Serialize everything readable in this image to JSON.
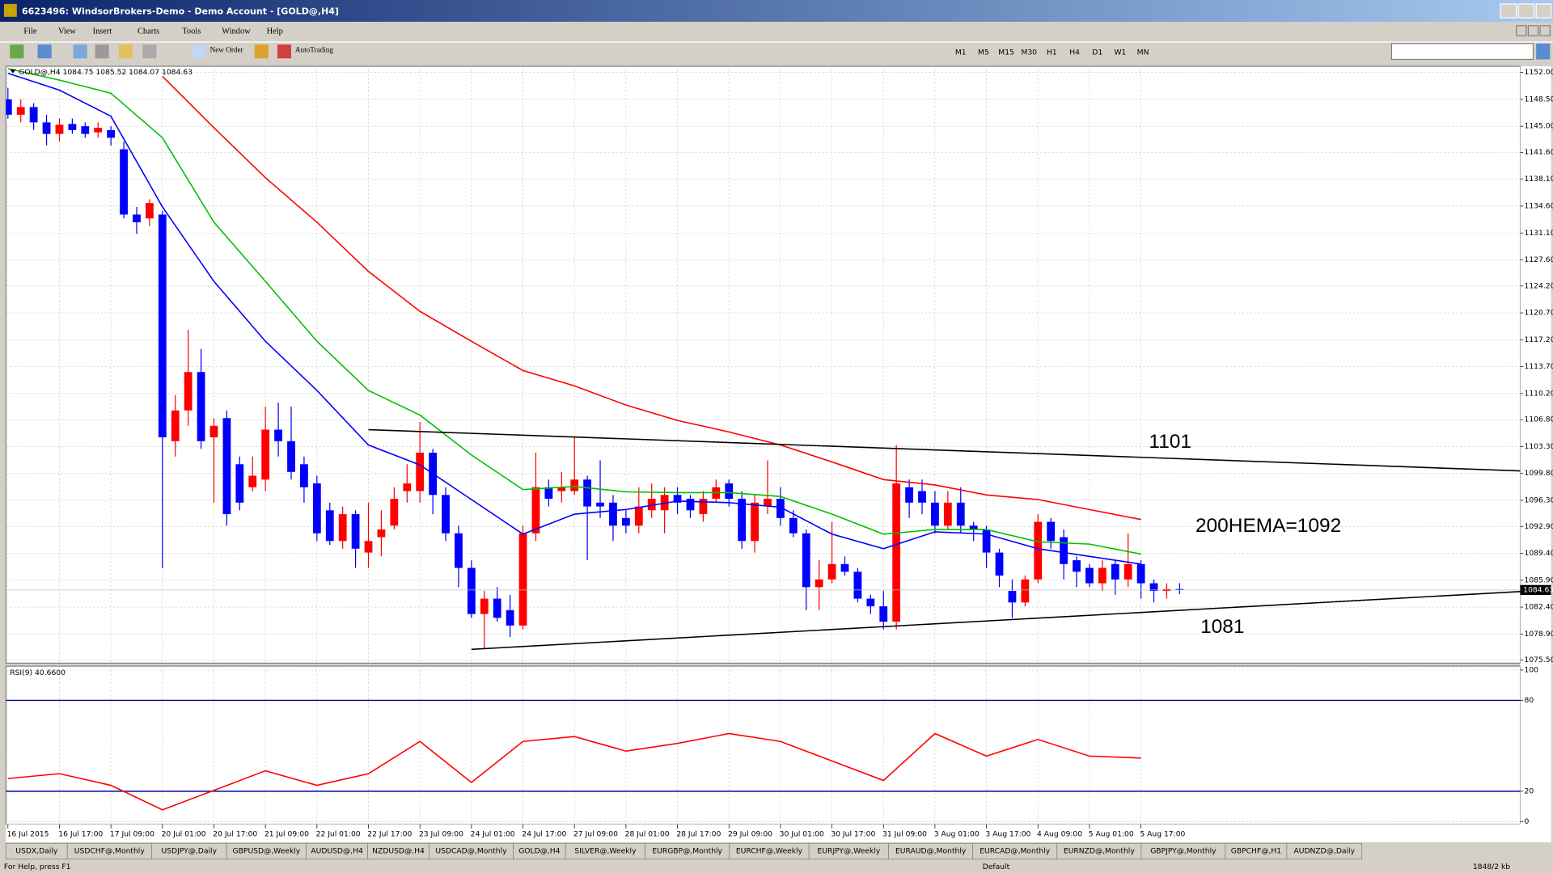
{
  "window": {
    "title": "6623496: WindsorBrokers-Demo - Demo Account - [GOLD@,H4]"
  },
  "menu": [
    "File",
    "View",
    "Insert",
    "Charts",
    "Tools",
    "Window",
    "Help"
  ],
  "toolbar": {
    "new_order": "New Order",
    "autotrading": "AutoTrading",
    "timeframes": [
      "M1",
      "M5",
      "M15",
      "M30",
      "H1",
      "H4",
      "D1",
      "W1",
      "MN"
    ]
  },
  "chart_data": [
    {
      "type": "candlestick",
      "header": "GOLD@,H4  1084.75 1085.52 1084.07 1084.63",
      "categories": [
        "16 Jul 2015",
        null,
        null,
        null,
        "16 Jul 17:00",
        null,
        null,
        null,
        "17 Jul 09:00",
        null,
        null,
        null,
        "20 Jul 01:00",
        null,
        null,
        null,
        "20 Jul 17:00",
        null,
        null,
        null,
        "21 Jul 09:00",
        null,
        null,
        null,
        "22 Jul 01:00",
        null,
        null,
        null,
        "22 Jul 17:00",
        null,
        null,
        null,
        "23 Jul 09:00",
        null,
        null,
        null,
        "24 Jul 01:00",
        null,
        null,
        null,
        "24 Jul 17:00",
        null,
        null,
        null,
        "27 Jul 09:00",
        null,
        null,
        null,
        "28 Jul 01:00",
        null,
        null,
        null,
        "28 Jul 17:00",
        null,
        null,
        null,
        "29 Jul 09:00",
        null,
        null,
        null,
        "30 Jul 01:00",
        null,
        null,
        null,
        "30 Jul 17:00",
        null,
        null,
        null,
        "31 Jul 09:00",
        null,
        null,
        null,
        "3 Aug 01:00",
        null,
        null,
        null,
        "3 Aug 17:00",
        null,
        null,
        null,
        "4 Aug 09:00",
        null,
        null,
        null,
        "5 Aug 01:00",
        null,
        null,
        null,
        "5 Aug 17:00",
        null,
        null,
        null
      ],
      "open": [
        1148.5,
        1146.5,
        1147.5,
        1145.5,
        1144.0,
        1145.3,
        1145.0,
        1144.2,
        1144.5,
        1142.0,
        1133.5,
        1133.0,
        1133.5,
        1104.0,
        1108.0,
        1113.0,
        1104.5,
        1107,
        1101,
        1098,
        1099,
        1105.5,
        1104,
        1101,
        1098.5,
        1095,
        1091,
        1094.5,
        1089.5,
        1091.5,
        1093,
        1097.5,
        1097.5,
        1102.5,
        1097,
        1092,
        1087.5,
        1081.5,
        1083.5,
        1082,
        1080,
        1092,
        1098,
        1097.5,
        1097.5,
        1099,
        1096,
        1096,
        1094,
        1093,
        1095,
        1095,
        1097,
        1096.5,
        1094.5,
        1096.5,
        1098.5,
        1096.5,
        1091,
        1095.5,
        1096.5,
        1094,
        1092,
        1085,
        1086,
        1088,
        1087,
        1083.5,
        1082.5,
        1080.5,
        1098,
        1097.5,
        1096,
        1093,
        1096,
        1093,
        1092.5,
        1089.5,
        1084.5,
        1083,
        1086,
        1093.5,
        1091.5,
        1088.5,
        1087.5,
        1085.5,
        1088,
        1086,
        1088,
        1085.5,
        1084.5,
        1084.75
      ],
      "high": [
        1150,
        1148.5,
        1148,
        1146.5,
        1146,
        1146,
        1145.5,
        1145.5,
        1145,
        1143,
        1134.5,
        1135.5,
        1134,
        1110,
        1118.5,
        1116,
        1107,
        1108,
        1102,
        1102,
        1108.5,
        1109,
        1108.5,
        1102,
        1099.5,
        1096,
        1095.5,
        1095,
        1096,
        1095,
        1098,
        1101,
        1106.5,
        1103,
        1098,
        1093,
        1088.5,
        1084.5,
        1085,
        1084,
        1093,
        1102.5,
        1099,
        1100,
        1104.5,
        1099.5,
        1101.5,
        1097,
        1095,
        1098,
        1098.5,
        1098,
        1098,
        1097,
        1097.5,
        1099,
        1099,
        1097.5,
        1097,
        1101.5,
        1098,
        1095,
        1092.5,
        1088.5,
        1093.5,
        1089,
        1087.5,
        1084,
        1084.5,
        1103.5,
        1099,
        1099,
        1097.5,
        1097.5,
        1098,
        1093.5,
        1093,
        1090,
        1086,
        1086.5,
        1094.5,
        1094,
        1092.5,
        1089,
        1088,
        1088.5,
        1088.5,
        1092,
        1088.5,
        1086,
        1085.5,
        1085.52
      ],
      "low": [
        1146,
        1145.5,
        1144.5,
        1142.5,
        1143,
        1144,
        1143.5,
        1143.5,
        1142.5,
        1133,
        1131,
        1132,
        1087.5,
        1102,
        1106,
        1103,
        1096,
        1093,
        1095,
        1097.5,
        1097.5,
        1102,
        1099,
        1096,
        1091,
        1090.5,
        1090,
        1087.5,
        1087.5,
        1089,
        1092.5,
        1096,
        1096,
        1094.5,
        1091,
        1085,
        1081,
        1077,
        1080.5,
        1078.5,
        1079.5,
        1091,
        1095.5,
        1096,
        1097,
        1088.5,
        1094,
        1091,
        1092,
        1092,
        1094,
        1092,
        1094.5,
        1094,
        1093.5,
        1096,
        1095.5,
        1090,
        1089.5,
        1094.5,
        1093,
        1091.5,
        1082,
        1082,
        1085.5,
        1086.5,
        1083,
        1081.5,
        1079.5,
        1079.5,
        1094,
        1094.5,
        1092,
        1092.5,
        1092,
        1091,
        1087.5,
        1085,
        1081,
        1082.5,
        1085.5,
        1090,
        1086,
        1085,
        1085,
        1084.5,
        1084,
        1085,
        1083.5,
        1083,
        1083.5,
        1084.07
      ],
      "close": [
        1146.5,
        1147.5,
        1145.5,
        1144.0,
        1145.2,
        1144.5,
        1144.0,
        1144.8,
        1143.5,
        1133.5,
        1132.5,
        1135.0,
        1104.5,
        1108.0,
        1113.0,
        1104.0,
        1106,
        1094.5,
        1096,
        1099.5,
        1105.5,
        1104,
        1100,
        1098,
        1092,
        1091,
        1094.5,
        1090,
        1091,
        1092.5,
        1096.5,
        1098.5,
        1102.5,
        1097,
        1092,
        1087.5,
        1081.5,
        1083.5,
        1081,
        1080,
        1092,
        1098,
        1096.5,
        1098,
        1099,
        1095.5,
        1095.5,
        1093,
        1093,
        1095.5,
        1096.5,
        1097,
        1096,
        1095,
        1096.5,
        1098,
        1096.5,
        1091,
        1096,
        1096.5,
        1094,
        1092,
        1085,
        1086,
        1088,
        1087,
        1083.5,
        1082.5,
        1080.5,
        1098.5,
        1096,
        1096,
        1093,
        1096,
        1093,
        1092.5,
        1089.5,
        1086.5,
        1083,
        1086,
        1093.5,
        1091,
        1088,
        1087,
        1085.5,
        1087.5,
        1086,
        1088,
        1085.5,
        1084.5,
        1084.75,
        1084.63
      ],
      "up_color": "#ff0000",
      "down_color": "#0000ff",
      "series": [
        {
          "color": "#0000ff",
          "x": [
            "16 Jul 2015",
            "16 Jul 17:00",
            "17 Jul 09:00",
            "20 Jul 01:00",
            "20 Jul 17:00",
            "21 Jul 09:00",
            "22 Jul 01:00",
            "22 Jul 17:00",
            "23 Jul 09:00",
            "24 Jul 01:00",
            "24 Jul 17:00",
            "27 Jul 09:00",
            "28 Jul 01:00",
            "28 Jul 17:00",
            "29 Jul 09:00",
            "30 Jul 01:00",
            "30 Jul 17:00",
            "31 Jul 09:00",
            "3 Aug 01:00",
            "3 Aug 17:00",
            "4 Aug 09:00",
            "5 Aug 01:00",
            "5 Aug 17:00"
          ],
          "values": [
            1151.9,
            1149.7,
            1146.3,
            1134.5,
            1124.8,
            1117,
            1110.6,
            1103.5,
            1100.9,
            1096.4,
            1091.9,
            1094.5,
            1095.1,
            1096.2,
            1096,
            1095.4,
            1091.9,
            1090,
            1092.2,
            1091.9,
            1090,
            1089,
            1088
          ]
        },
        {
          "color": "#00c000",
          "x": [
            "16 Jul 2015",
            "16 Jul 17:00",
            "17 Jul 09:00",
            "20 Jul 01:00",
            "20 Jul 17:00",
            "21 Jul 09:00",
            "22 Jul 01:00",
            "22 Jul 17:00",
            "23 Jul 09:00",
            "24 Jul 01:00",
            "24 Jul 17:00",
            "27 Jul 09:00",
            "28 Jul 01:00",
            "28 Jul 17:00",
            "29 Jul 09:00",
            "30 Jul 01:00",
            "30 Jul 17:00",
            "31 Jul 09:00",
            "3 Aug 01:00",
            "3 Aug 17:00",
            "4 Aug 09:00",
            "5 Aug 01:00",
            "5 Aug 17:00"
          ],
          "values": [
            1152.5,
            1151,
            1149.3,
            1143.5,
            1132.5,
            1124.8,
            1117,
            1110.6,
            1107.4,
            1102.2,
            1097.7,
            1098.1,
            1097.4,
            1097.3,
            1097.3,
            1096.8,
            1094.5,
            1091.9,
            1092.5,
            1092.5,
            1090.9,
            1090.6,
            1089.3
          ]
        },
        {
          "color": "#ff0000",
          "x": [
            "16 Jul 2015",
            "16 Jul 17:00",
            "17 Jul 09:00",
            "20 Jul 01:00",
            "20 Jul 17:00",
            "21 Jul 09:00",
            "22 Jul 01:00",
            "22 Jul 17:00",
            "23 Jul 09:00",
            "24 Jul 01:00",
            "24 Jul 17:00",
            "27 Jul 09:00",
            "28 Jul 01:00",
            "28 Jul 17:00",
            "29 Jul 09:00",
            "30 Jul 01:00",
            "30 Jul 17:00",
            "31 Jul 09:00",
            "3 Aug 01:00",
            "3 Aug 17:00",
            "4 Aug 09:00",
            "5 Aug 01:00",
            "5 Aug 17:00"
          ],
          "values": [
            null,
            null,
            null,
            1151.5,
            1144.8,
            1138.3,
            1132.5,
            1126.1,
            1120.9,
            1117,
            1113.2,
            1111.2,
            1108.7,
            1106.7,
            1105.2,
            1103.5,
            1101.3,
            1099,
            1098.3,
            1097,
            1096.4,
            1095.1,
            1093.8
          ]
        }
      ],
      "trendlines": [
        {
          "color": "#000000",
          "from": {
            "x": "22 Jul 17:00",
            "y": 1105.5
          },
          "to": {
            "x": "5 Aug 17:00",
            "y": 1101.9
          }
        },
        {
          "color": "#000000",
          "from": {
            "x": "24 Jul 01:00",
            "y": 1076.9
          },
          "to": {
            "x": "5 Aug 17:00",
            "y": 1081.7
          }
        }
      ],
      "annotations": [
        "1101",
        "200HEMA=1092",
        "1081"
      ],
      "current_price": {
        "value": 1084.63,
        "label": "1084.63"
      },
      "ylim": [
        1075.1,
        1152.8
      ],
      "yticks": [
        {
          "value": 1152,
          "label": "1152.00"
        },
        {
          "value": 1148.5,
          "label": "1148.50"
        },
        {
          "value": 1145,
          "label": "1145.00"
        },
        {
          "value": 1141.6,
          "label": "1141.60"
        },
        {
          "value": 1138.1,
          "label": "1138.10"
        },
        {
          "value": 1134.6,
          "label": "1134.60"
        },
        {
          "value": 1131.1,
          "label": "1131.10"
        },
        {
          "value": 1127.6,
          "label": "1127.60"
        },
        {
          "value": 1124.2,
          "label": "1124.20"
        },
        {
          "value": 1120.7,
          "label": "1120.70"
        },
        {
          "value": 1117.2,
          "label": "1117.20"
        },
        {
          "value": 1113.7,
          "label": "1113.70"
        },
        {
          "value": 1110.2,
          "label": "1110.20"
        },
        {
          "value": 1106.8,
          "label": "1106.80"
        },
        {
          "value": 1103.3,
          "label": "1103.30"
        },
        {
          "value": 1099.8,
          "label": "1099.80"
        },
        {
          "value": 1096.3,
          "label": "1096.30"
        },
        {
          "value": 1092.9,
          "label": "1092.90"
        },
        {
          "value": 1089.4,
          "label": "1089.40"
        },
        {
          "value": 1085.9,
          "label": "1085.90"
        },
        {
          "value": 1082.4,
          "label": "1082.40"
        },
        {
          "value": 1078.9,
          "label": "1078.90"
        },
        {
          "value": 1075.5,
          "label": "1075.50"
        }
      ],
      "grid": true
    },
    {
      "type": "line",
      "title": "RSI(9) 40.6600",
      "series": [
        {
          "color": "#ff0000",
          "x": [
            "16 Jul 2015",
            "16 Jul 17:00",
            "17 Jul 09:00",
            "20 Jul 01:00",
            "20 Jul 17:00",
            "21 Jul 09:00",
            "22 Jul 01:00",
            "22 Jul 17:00",
            "23 Jul 09:00",
            "24 Jul 01:00",
            "24 Jul 17:00",
            "27 Jul 09:00",
            "28 Jul 01:00",
            "28 Jul 17:00",
            "29 Jul 09:00",
            "30 Jul 01:00",
            "30 Jul 17:00",
            "31 Jul 09:00",
            "3 Aug 01:00",
            "3 Aug 17:00",
            "4 Aug 09:00",
            "5 Aug 01:00",
            "5 Aug 17:00"
          ],
          "values": [
            28.4,
            31.6,
            23.9,
            7.7,
            20.6,
            33.5,
            23.9,
            31.6,
            52.9,
            25.8,
            52.9,
            56.1,
            46.5,
            51.6,
            58.1,
            52.9,
            40,
            27.1,
            58.1,
            43.2,
            54.2,
            43.2,
            41.9
          ]
        }
      ],
      "levels": [
        20,
        80
      ],
      "level_color": "#0000aa",
      "ylim": [
        0,
        100
      ],
      "yticks": [
        0,
        20,
        80,
        100
      ],
      "grid": true
    }
  ],
  "tabs": [
    "USDX,Daily",
    "USDCHF@,Monthly",
    "USDJPY@,Daily",
    "GBPUSD@,Weekly",
    "AUDUSD@,H4",
    "NZDUSD@,H4",
    "USDCAD@,Monthly",
    "GOLD@,H4",
    "SILVER@,Weekly",
    "EURGBP@,Monthly",
    "EURCHF@,Weekly",
    "EURJPY@,Weekly",
    "EURAUD@,Monthly",
    "EURCAD@,Monthly",
    "EURNZD@,Monthly",
    "GBPJPY@,Monthly",
    "GBPCHF@,H1",
    "AUDNZD@,Daily"
  ],
  "status": {
    "help": "For Help, press F1",
    "profile": "Default",
    "traffic": "1848/2 kb"
  }
}
